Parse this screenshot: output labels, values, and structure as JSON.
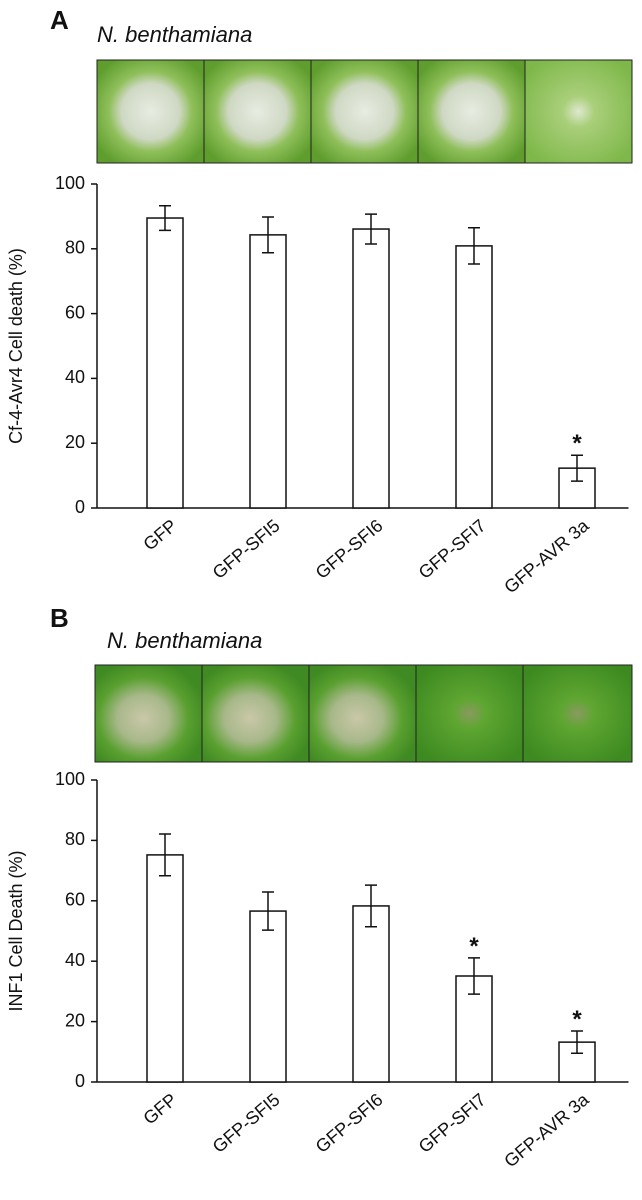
{
  "chart_data": [
    {
      "type": "bar",
      "panel": "A",
      "subtitle": "N. benthamiana",
      "ylabel": "Cf-4-Avr4 Cell death (%)",
      "categories": [
        "GFP",
        "GFP-SFI5",
        "GFP-SFI6",
        "GFP-SFI7",
        "GFP-AVR 3a"
      ],
      "values": [
        89.5,
        84.3,
        86.1,
        80.9,
        12.3
      ],
      "errors": [
        3.8,
        5.5,
        4.6,
        5.6,
        4.0
      ],
      "significance": [
        null,
        null,
        null,
        null,
        "*"
      ],
      "color": "#ffffff",
      "ylim": [
        0,
        100
      ],
      "yticks": [
        0,
        20,
        40,
        60,
        80,
        100
      ],
      "grid": false
    },
    {
      "type": "bar",
      "panel": "B",
      "subtitle": "N. benthamiana",
      "ylabel": "INF1 Cell Death (%)",
      "categories": [
        "GFP",
        "GFP-SFI5",
        "GFP-SFI6",
        "GFP-SFI7",
        "GFP-AVR 3a"
      ],
      "values": [
        75.2,
        56.6,
        58.3,
        35.1,
        13.2
      ],
      "errors": [
        6.9,
        6.3,
        6.9,
        6.0,
        3.7
      ],
      "significance": [
        null,
        null,
        null,
        "*",
        "*"
      ],
      "color": "#ffffff",
      "ylim": [
        0,
        100
      ],
      "yticks": [
        0,
        20,
        40,
        60,
        80,
        100
      ],
      "grid": false
    }
  ]
}
